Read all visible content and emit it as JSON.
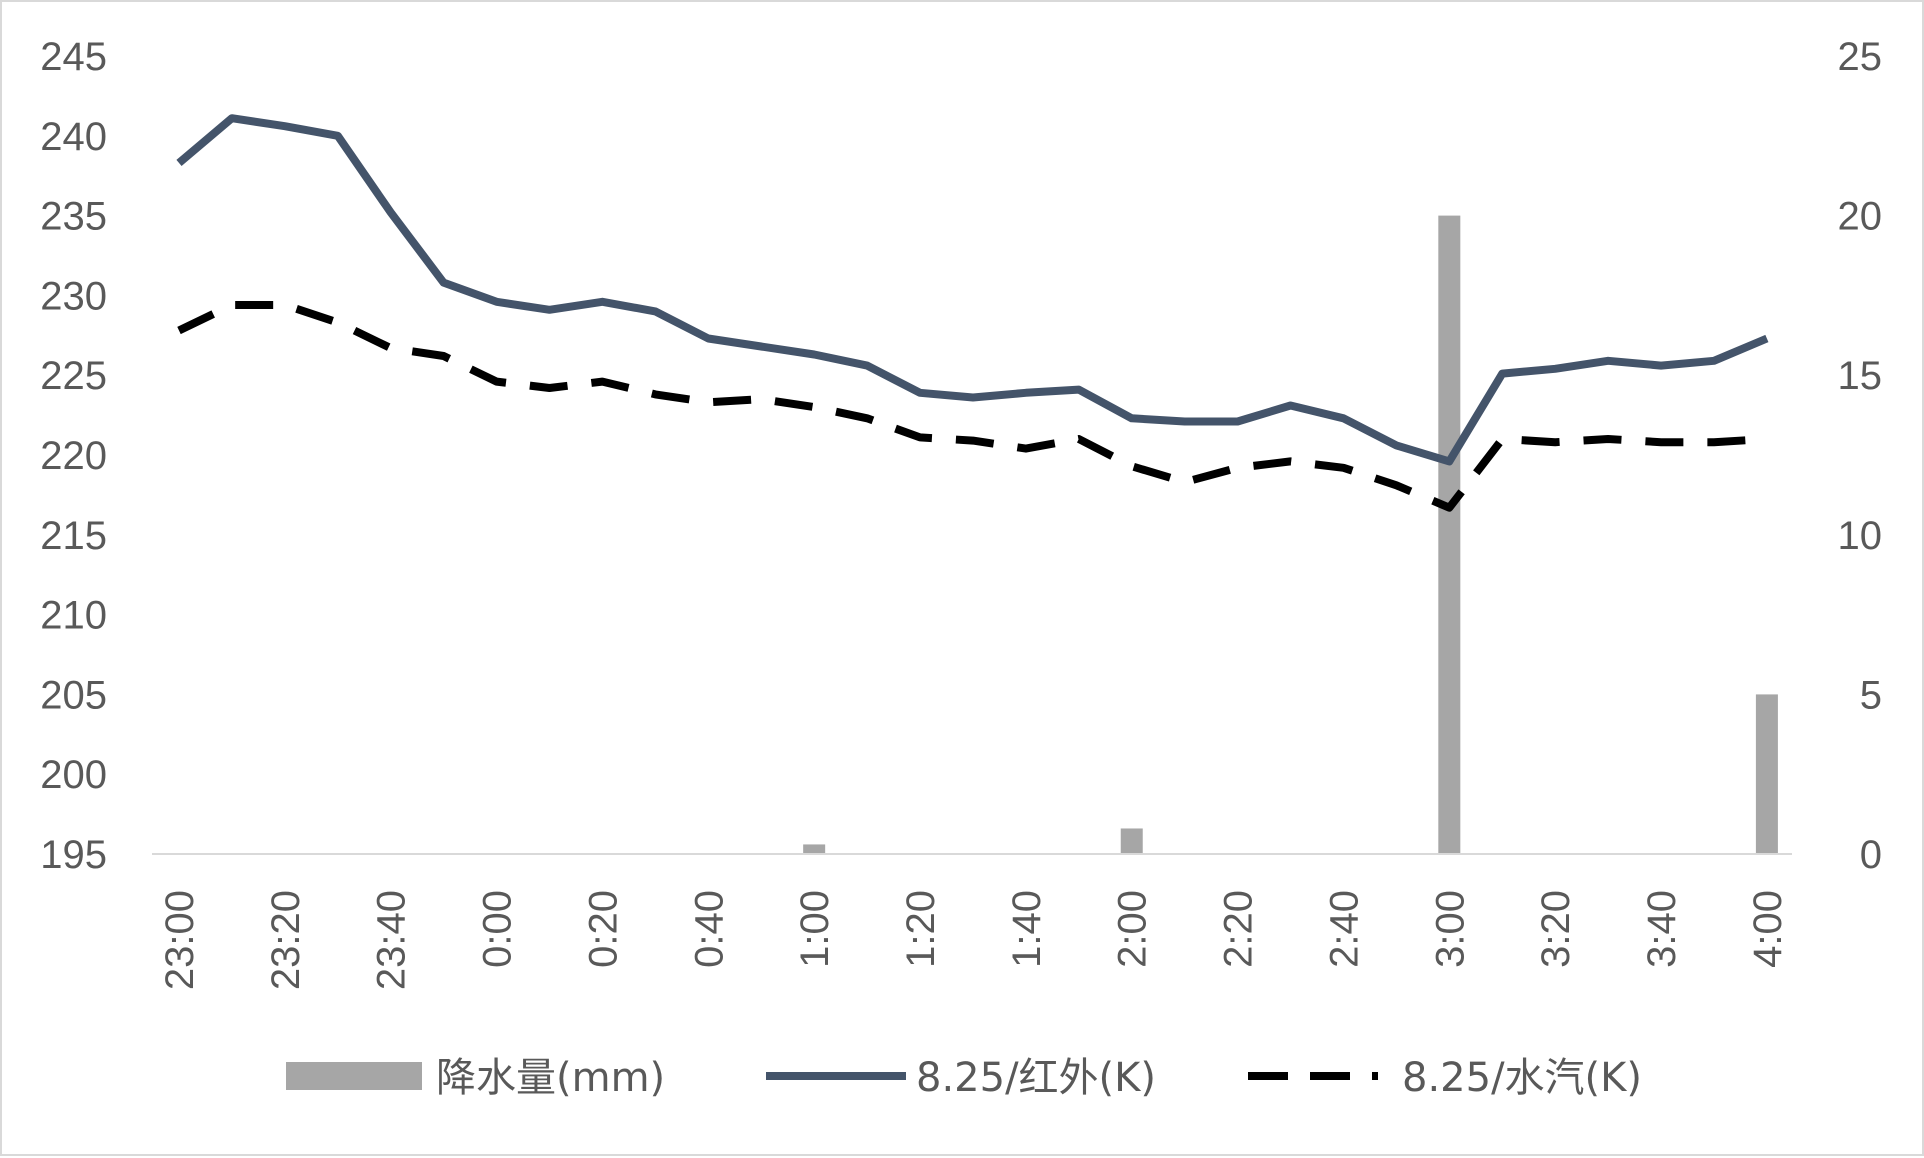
{
  "chart_data": {
    "type": "bar+line",
    "x": [
      "23:00",
      "23:10",
      "23:20",
      "23:30",
      "23:40",
      "23:50",
      "0:00",
      "0:10",
      "0:20",
      "0:30",
      "0:40",
      "0:50",
      "1:00",
      "1:10",
      "1:20",
      "1:30",
      "1:40",
      "1:50",
      "2:00",
      "2:10",
      "2:20",
      "2:30",
      "2:40",
      "2:50",
      "3:00",
      "3:10",
      "3:20",
      "3:30",
      "3:40",
      "3:50",
      "4:00"
    ],
    "x_tick_labels": [
      "23:00",
      "23:20",
      "23:40",
      "0:00",
      "0:20",
      "0:40",
      "1:00",
      "1:20",
      "1:40",
      "2:00",
      "2:20",
      "2:40",
      "3:00",
      "3:20",
      "3:40",
      "4:00"
    ],
    "y_left": {
      "ticks": [
        "245",
        "240",
        "235",
        "230",
        "225",
        "220",
        "215",
        "210",
        "205",
        "200",
        "195"
      ],
      "min": 195,
      "max": 245
    },
    "y_right": {
      "ticks": [
        "25",
        "20",
        "15",
        "10",
        "5",
        "0"
      ],
      "min": 0,
      "max": 25
    },
    "series": [
      {
        "name": "降水量(mm)",
        "kind": "bar",
        "axis": "right",
        "color": "#a6a6a6",
        "values": [
          0,
          0,
          0,
          0,
          0,
          0,
          0,
          0,
          0,
          0,
          0,
          0,
          0.3,
          0,
          0,
          0,
          0,
          0,
          0.8,
          0,
          0,
          0,
          0,
          0,
          20,
          0,
          0,
          0,
          0,
          0,
          5
        ]
      },
      {
        "name": "8.25/红外(K)",
        "kind": "line",
        "axis": "left",
        "color": "#44546a",
        "dash": "solid",
        "values": [
          238.3,
          241.1,
          240.6,
          240.0,
          235.2,
          230.8,
          229.6,
          229.1,
          229.6,
          229.0,
          227.3,
          226.8,
          226.3,
          225.6,
          223.9,
          223.6,
          223.9,
          224.1,
          222.3,
          222.1,
          222.1,
          223.1,
          222.3,
          220.6,
          219.6,
          225.1,
          225.4,
          225.9,
          225.6,
          225.9,
          227.3
        ]
      },
      {
        "name": "8.25/水汽(K)",
        "kind": "line",
        "axis": "left",
        "color": "#000000",
        "dash": "dashed",
        "values": [
          227.8,
          229.4,
          229.4,
          228.3,
          226.7,
          226.2,
          224.6,
          224.2,
          224.6,
          223.8,
          223.3,
          223.5,
          223.0,
          222.3,
          221.1,
          220.9,
          220.4,
          221.0,
          219.3,
          218.3,
          219.2,
          219.6,
          219.2,
          218.1,
          216.7,
          221.0,
          220.8,
          221.0,
          220.8,
          220.8,
          221.0
        ]
      }
    ],
    "legend": {
      "position": "bottom"
    },
    "grid": false
  }
}
